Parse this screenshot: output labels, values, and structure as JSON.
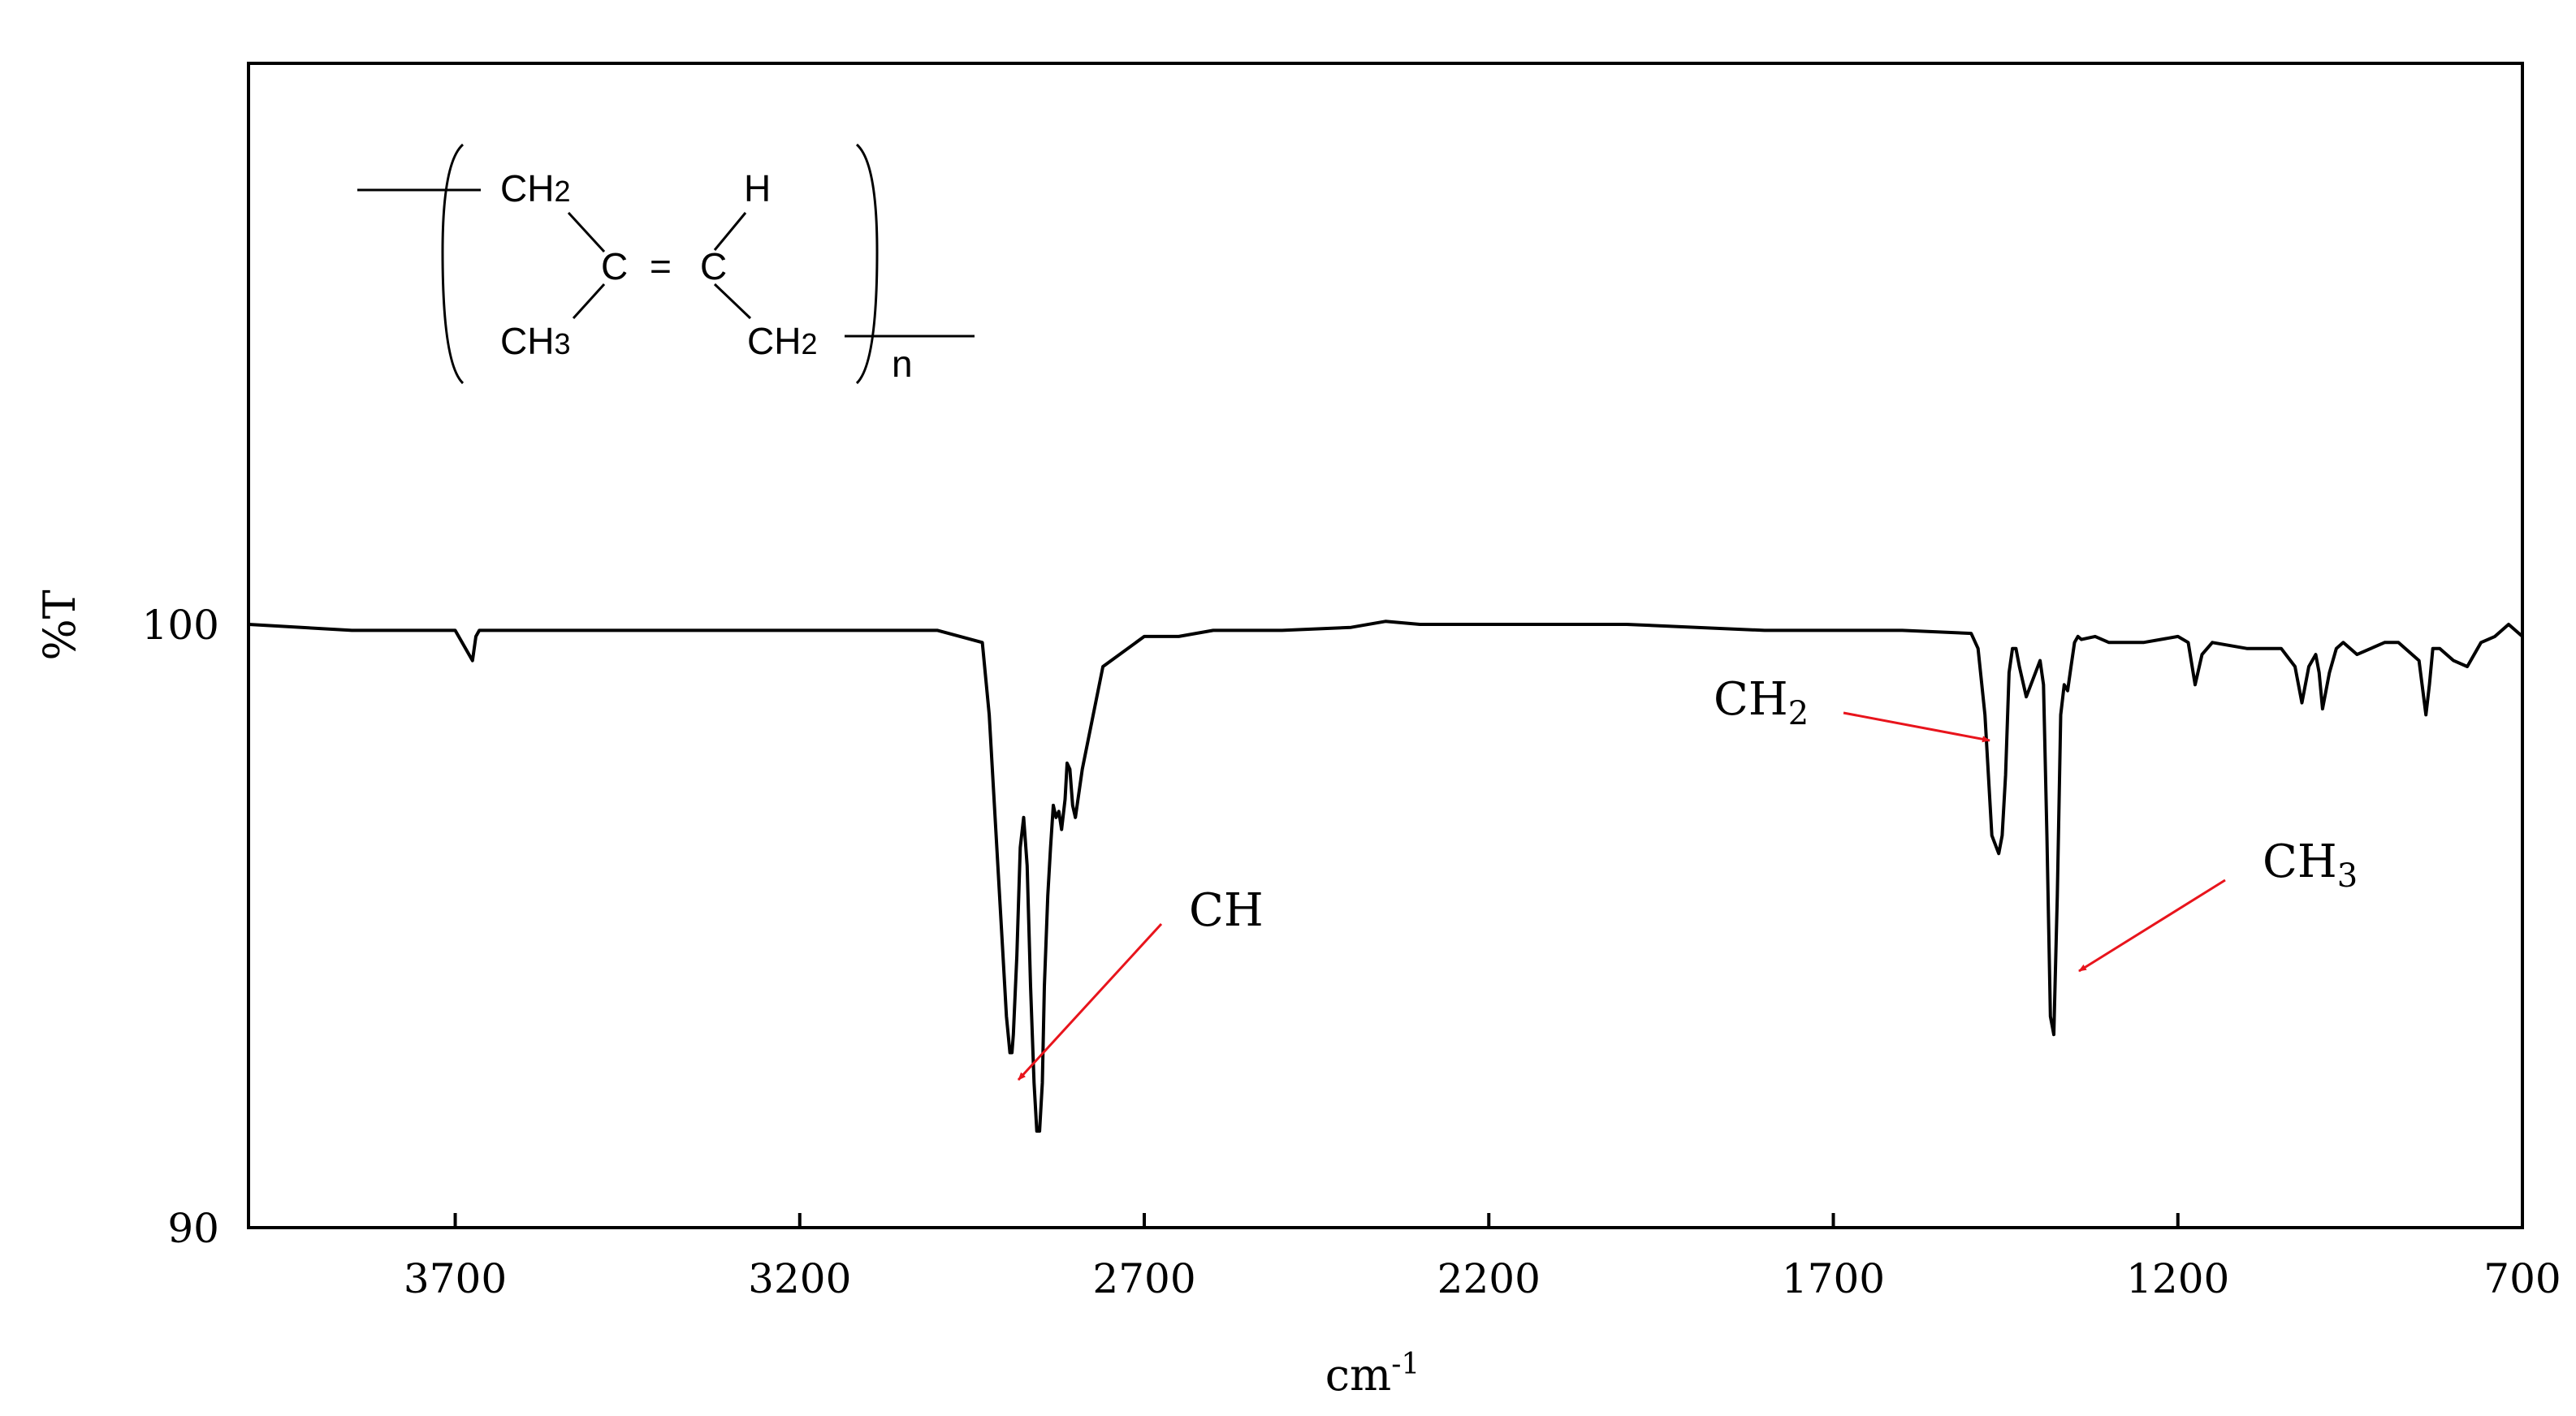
{
  "chart_data": {
    "type": "line",
    "title": "",
    "xlabel": "cm",
    "xlabel_superscript": "-1",
    "ylabel": "%T",
    "x_reversed": true,
    "xlim": [
      4000,
      700
    ],
    "ylim": [
      90,
      109.3
    ],
    "x_ticks": [
      "3700",
      "3200",
      "2700",
      "2200",
      "1700",
      "1200",
      "700"
    ],
    "y_ticks": [
      "90",
      "100"
    ],
    "grid": false,
    "series": [
      {
        "x": [
          4000,
          3850,
          3700,
          3675,
          3670,
          3665,
          3600,
          3400,
          3200,
          3000,
          2935,
          2925,
          2915,
          2905,
          2900,
          2895,
          2892,
          2890,
          2885,
          2880,
          2875,
          2870,
          2865,
          2860,
          2856,
          2852,
          2848,
          2845,
          2840,
          2836,
          2832,
          2828,
          2824,
          2820,
          2815,
          2812,
          2808,
          2804,
          2800,
          2790,
          2760,
          2700,
          2650,
          2600,
          2500,
          2400,
          2350,
          2300,
          2200,
          2000,
          1800,
          1600,
          1500,
          1490,
          1480,
          1470,
          1460,
          1455,
          1450,
          1445,
          1440,
          1435,
          1430,
          1420,
          1400,
          1395,
          1390,
          1385,
          1380,
          1375,
          1370,
          1365,
          1360,
          1355,
          1350,
          1345,
          1340,
          1320,
          1300,
          1250,
          1200,
          1185,
          1175,
          1165,
          1150,
          1100,
          1050,
          1030,
          1020,
          1010,
          1000,
          995,
          990,
          980,
          970,
          960,
          940,
          900,
          880,
          850,
          840,
          835,
          830,
          820,
          800,
          780,
          760,
          740,
          720,
          700
        ],
        "y": [
          100.0,
          99.9,
          99.9,
          99.4,
          99.8,
          99.9,
          99.9,
          99.9,
          99.9,
          99.9,
          99.7,
          98.5,
          96.5,
          94.5,
          93.5,
          92.9,
          92.9,
          93.2,
          94.5,
          96.3,
          96.8,
          96.0,
          94.0,
          92.4,
          91.6,
          91.6,
          92.4,
          94.0,
          95.5,
          96.3,
          97.0,
          96.8,
          96.9,
          96.6,
          97.1,
          97.7,
          97.6,
          97.0,
          96.8,
          97.6,
          99.3,
          99.8,
          99.8,
          99.9,
          99.9,
          99.95,
          100.05,
          100.0,
          100.0,
          100.0,
          99.9,
          99.9,
          99.85,
          99.6,
          98.5,
          96.5,
          96.2,
          96.5,
          97.5,
          99.2,
          99.6,
          99.6,
          99.3,
          98.8,
          99.4,
          99.0,
          96.5,
          93.5,
          93.2,
          95.5,
          98.5,
          99.0,
          98.9,
          99.3,
          99.7,
          99.8,
          99.75,
          99.8,
          99.7,
          99.7,
          99.8,
          99.7,
          99.0,
          99.5,
          99.7,
          99.6,
          99.6,
          99.3,
          98.7,
          99.3,
          99.5,
          99.2,
          98.6,
          99.2,
          99.6,
          99.7,
          99.5,
          99.7,
          99.7,
          99.4,
          98.5,
          99.0,
          99.6,
          99.6,
          99.4,
          99.3,
          99.7,
          99.8,
          100.0,
          99.8
        ]
      }
    ],
    "annotations": [
      {
        "label": "CH",
        "label_sub": "",
        "x": 2850,
        "y": 91.8
      },
      {
        "label": "CH",
        "label_sub": "2",
        "x": 1462,
        "y": 96.2
      },
      {
        "label": "CH",
        "label_sub": "3",
        "x": 1375,
        "y": 93.3
      }
    ],
    "annotation_color": "#e8141c",
    "line_color": "#000000",
    "inset_structure": {
      "top_left_group": "CH",
      "top_left_sub": "2",
      "top_right_atom": "H",
      "center_left_atom": "C",
      "double_bond": "=",
      "center_right_atom": "C",
      "bottom_left_group": "CH",
      "bottom_left_sub": "3",
      "bottom_right_group": "CH",
      "bottom_right_sub": "2",
      "repeat_unit": "n"
    }
  }
}
